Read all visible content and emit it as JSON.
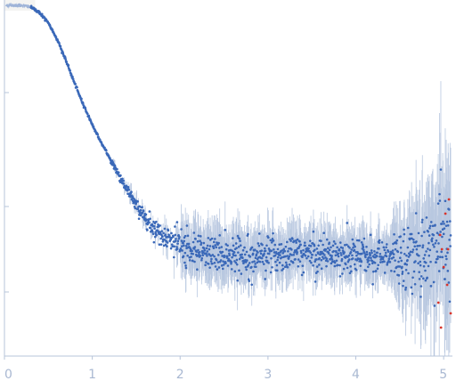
{
  "chart_data": {
    "type": "scatter",
    "title": "",
    "xlabel": "",
    "ylabel": "",
    "xlim": [
      0,
      5.1
    ],
    "ylim": [
      0,
      1
    ],
    "grid": false,
    "legend": "none",
    "x_ticks": [
      "0",
      "1",
      "2",
      "3",
      "4",
      "5"
    ],
    "y_ticks_labeled": false,
    "colors": {
      "points": "#3a68b8",
      "error_bars": "#b9c8e0",
      "outliers": "#d9342b",
      "axis": "#b7c4da",
      "tick_labels": "#a9b8d2",
      "background": "#ffffff",
      "band": "#f4f4f2"
    },
    "series": [
      {
        "profile_x": [
          0.0,
          0.2,
          0.3,
          0.4,
          0.5,
          0.6,
          0.7,
          0.8,
          0.9,
          1.0,
          1.1,
          1.2,
          1.3,
          1.4,
          1.5,
          1.6,
          1.7,
          1.8,
          1.9,
          2.0,
          2.1,
          2.2,
          2.5,
          3.0,
          3.5,
          4.0,
          4.4,
          4.7,
          5.0
        ],
        "profile_y": [
          0.985,
          0.985,
          0.98,
          0.965,
          0.935,
          0.89,
          0.83,
          0.765,
          0.705,
          0.65,
          0.6,
          0.555,
          0.51,
          0.465,
          0.425,
          0.39,
          0.36,
          0.34,
          0.325,
          0.31,
          0.3,
          0.29,
          0.285,
          0.285,
          0.29,
          0.285,
          0.275,
          0.285,
          0.32
        ]
      }
    ],
    "outliers": [
      {
        "x": 4.96,
        "y": 0.34
      },
      {
        "x": 4.98,
        "y": 0.3
      },
      {
        "x": 5.0,
        "y": 0.25
      },
      {
        "x": 5.02,
        "y": 0.4
      },
      {
        "x": 5.04,
        "y": 0.2
      },
      {
        "x": 5.06,
        "y": 0.44
      },
      {
        "x": 4.94,
        "y": 0.15
      },
      {
        "x": 5.08,
        "y": 0.12
      },
      {
        "x": 4.97,
        "y": 0.08
      },
      {
        "x": 5.05,
        "y": 0.3
      }
    ]
  }
}
